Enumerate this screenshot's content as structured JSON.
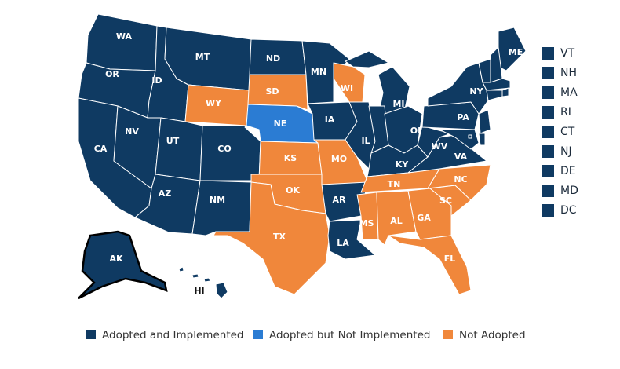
{
  "legend": [
    {
      "label": "Adopted and Implemented",
      "color": "#0f3a62"
    },
    {
      "label": "Adopted but Not Implemented",
      "color": "#2b7cd3"
    },
    {
      "label": "Not Adopted",
      "color": "#f0873b"
    }
  ],
  "states": [
    {
      "label": "WA",
      "color": "#0f3a62"
    },
    {
      "label": "OR",
      "color": "#0f3a62"
    },
    {
      "label": "CA",
      "color": "#0f3a62"
    },
    {
      "label": "NV",
      "color": "#0f3a62"
    },
    {
      "label": "ID",
      "color": "#0f3a62"
    },
    {
      "label": "MT",
      "color": "#0f3a62"
    },
    {
      "label": "WY",
      "color": "#f0873b"
    },
    {
      "label": "UT",
      "color": "#0f3a62"
    },
    {
      "label": "CO",
      "color": "#0f3a62"
    },
    {
      "label": "AZ",
      "color": "#0f3a62"
    },
    {
      "label": "NM",
      "color": "#0f3a62"
    },
    {
      "label": "ND",
      "color": "#0f3a62"
    },
    {
      "label": "SD",
      "color": "#f0873b"
    },
    {
      "label": "NE",
      "color": "#2b7cd3"
    },
    {
      "label": "KS",
      "color": "#f0873b"
    },
    {
      "label": "OK",
      "color": "#f0873b"
    },
    {
      "label": "TX",
      "color": "#f0873b"
    },
    {
      "label": "MN",
      "color": "#0f3a62"
    },
    {
      "label": "IA",
      "color": "#0f3a62"
    },
    {
      "label": "MO",
      "color": "#f0873b"
    },
    {
      "label": "AR",
      "color": "#0f3a62"
    },
    {
      "label": "LA",
      "color": "#0f3a62"
    },
    {
      "label": "WI",
      "color": "#f0873b"
    },
    {
      "label": "IL",
      "color": "#0f3a62"
    },
    {
      "label": "MI",
      "color": "#0f3a62"
    },
    {
      "label": "IN",
      "color": "#0f3a62"
    },
    {
      "label": "OH",
      "color": "#0f3a62"
    },
    {
      "label": "KY",
      "color": "#0f3a62"
    },
    {
      "label": "TN",
      "color": "#f0873b"
    },
    {
      "label": "MS",
      "color": "#f0873b"
    },
    {
      "label": "AL",
      "color": "#f0873b"
    },
    {
      "label": "GA",
      "color": "#f0873b"
    },
    {
      "label": "FL",
      "color": "#f0873b"
    },
    {
      "label": "SC",
      "color": "#f0873b"
    },
    {
      "label": "NC",
      "color": "#f0873b"
    },
    {
      "label": "VA",
      "color": "#0f3a62"
    },
    {
      "label": "WV",
      "color": "#0f3a62"
    },
    {
      "label": "PA",
      "color": "#0f3a62"
    },
    {
      "label": "NY",
      "color": "#0f3a62"
    },
    {
      "label": "ME",
      "color": "#0f3a62"
    },
    {
      "label": "AK",
      "color": "#0f3a62"
    },
    {
      "label": "HI",
      "color": "#0f3a62"
    }
  ],
  "small_states": [
    {
      "label": "VT",
      "color": "#0f3a62"
    },
    {
      "label": "NH",
      "color": "#0f3a62"
    },
    {
      "label": "MA",
      "color": "#0f3a62"
    },
    {
      "label": "RI",
      "color": "#0f3a62"
    },
    {
      "label": "CT",
      "color": "#0f3a62"
    },
    {
      "label": "NJ",
      "color": "#0f3a62"
    },
    {
      "label": "DE",
      "color": "#0f3a62"
    },
    {
      "label": "MD",
      "color": "#0f3a62"
    },
    {
      "label": "DC",
      "color": "#0f3a62"
    }
  ]
}
